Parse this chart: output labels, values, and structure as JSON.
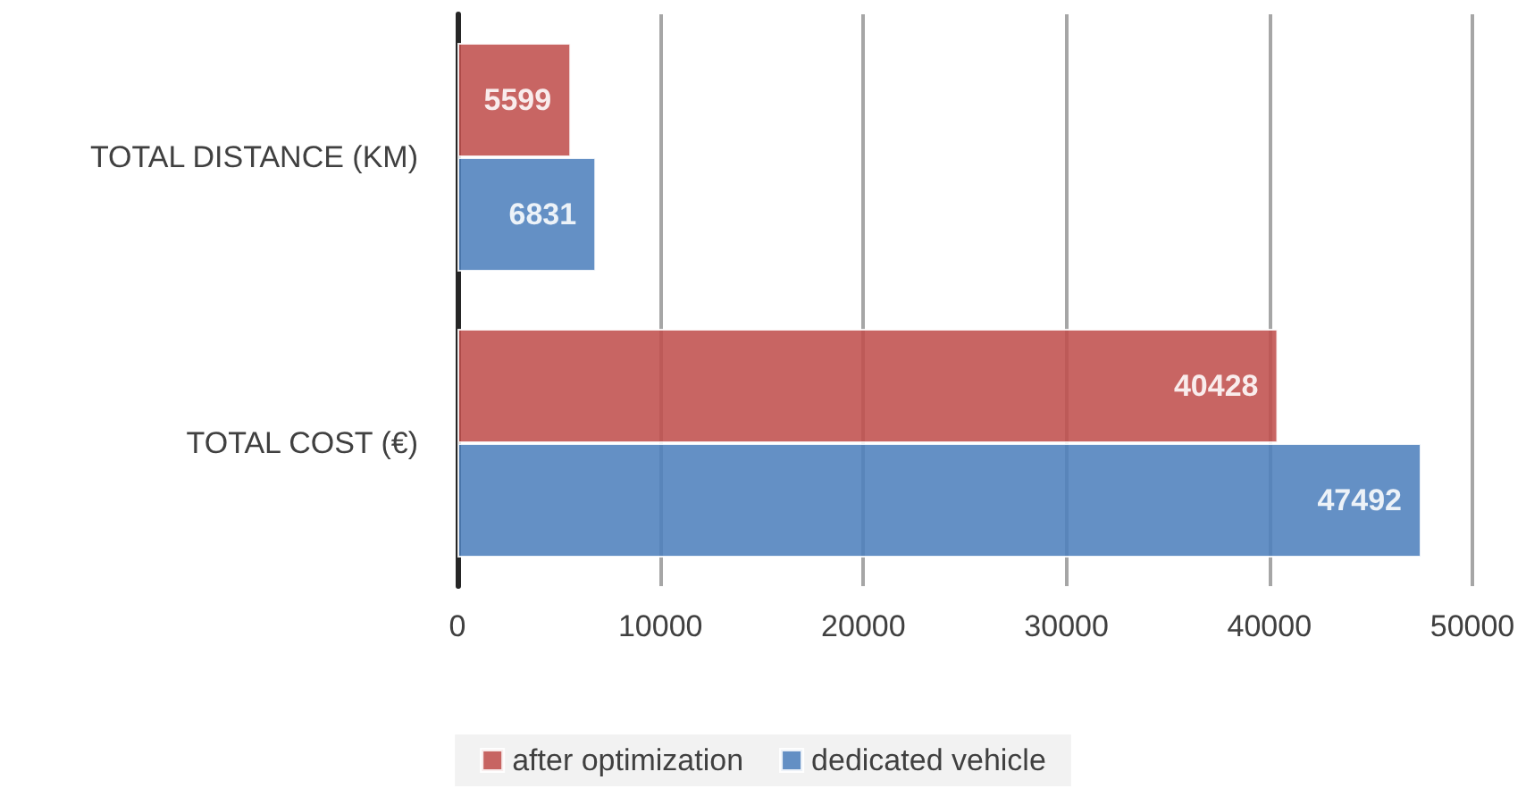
{
  "chart_data": {
    "type": "bar",
    "orientation": "horizontal",
    "categories": [
      "TOTAL DISTANCE (KM)",
      "TOTAL COST (€)"
    ],
    "series": [
      {
        "name": "after optimization",
        "color": "#c0504d",
        "values": [
          5599,
          40428
        ]
      },
      {
        "name": "dedicated vehicle",
        "color": "#4f81bd",
        "values": [
          6831,
          47492
        ]
      }
    ],
    "xlim": [
      0,
      50000
    ],
    "xticks": [
      0,
      10000,
      20000,
      30000,
      40000,
      50000
    ],
    "grid": "x",
    "legend": "bottom",
    "data_labels": true
  }
}
